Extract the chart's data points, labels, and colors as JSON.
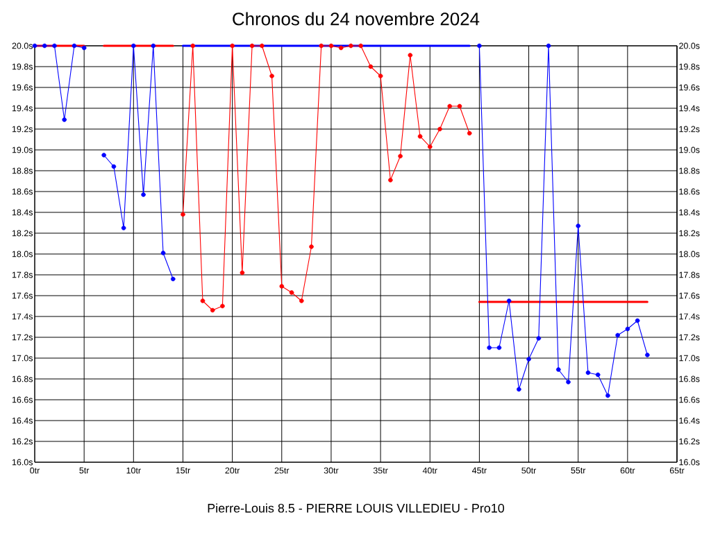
{
  "chart_data": {
    "type": "line",
    "title": "Chronos du 24 novembre 2024",
    "xlabel": "Pierre-Louis 8.5 - PIERRE LOUIS VILLEDIEU - Pro10",
    "x": [
      0,
      1,
      2,
      3,
      4,
      5,
      6,
      7,
      8,
      9,
      10,
      11,
      12,
      13,
      14,
      15,
      16,
      17,
      18,
      19,
      20,
      21,
      22,
      23,
      24,
      25,
      26,
      27,
      28,
      29,
      30,
      31,
      32,
      33,
      34,
      35,
      36,
      37,
      38,
      39,
      40,
      41,
      42,
      43,
      44,
      45,
      46,
      47,
      48,
      49,
      50,
      51,
      52,
      53,
      54,
      55,
      56,
      57,
      58,
      59,
      60,
      61,
      62
    ],
    "series": [
      {
        "type": "line",
        "marker": "none",
        "color": "#ff0000",
        "x": [
          0,
          5
        ],
        "values": [
          20,
          20
        ]
      },
      {
        "type": "line",
        "marker": "none",
        "color": "#ff0000",
        "x": [
          7,
          14
        ],
        "values": [
          20,
          20
        ]
      },
      {
        "type": "line",
        "marker": "none",
        "color": "#0000ff",
        "x": [
          15,
          44
        ],
        "values": [
          20,
          20
        ]
      },
      {
        "type": "line",
        "marker": "none",
        "color": "#ff0000",
        "x": [
          45,
          62
        ],
        "values": [
          17.54,
          17.54
        ]
      },
      {
        "color": "#0000ff",
        "values": [
          20.0,
          20.0,
          20.0,
          19.29,
          20.0,
          19.98,
          null,
          18.95,
          18.84,
          18.25,
          20.0,
          18.57,
          20.0,
          18.01,
          17.76,
          null,
          null,
          null,
          null,
          null,
          null,
          null,
          null,
          null,
          null,
          null,
          null,
          null,
          null,
          null,
          null,
          null,
          null,
          null,
          null,
          null,
          null,
          null,
          null,
          null,
          null,
          null,
          null,
          null,
          null,
          20.0,
          17.1,
          17.1,
          17.55,
          16.7,
          16.99,
          17.19,
          20.0,
          16.89,
          16.77,
          18.27,
          16.86,
          16.84,
          16.64,
          17.22,
          17.28,
          17.36,
          17.03
        ]
      },
      {
        "color": "#ff0000",
        "values": [
          null,
          null,
          null,
          null,
          null,
          null,
          null,
          null,
          null,
          null,
          null,
          null,
          null,
          null,
          null,
          18.38,
          20.0,
          17.55,
          17.46,
          17.5,
          20.0,
          17.82,
          20.0,
          20.0,
          19.71,
          17.69,
          17.63,
          17.55,
          18.07,
          20.0,
          20.0,
          19.98,
          20.0,
          20.0,
          19.8,
          19.71,
          18.71,
          18.94,
          19.91,
          19.13,
          19.03,
          19.2,
          19.42,
          19.42,
          19.16,
          null,
          null,
          null,
          null,
          null,
          null,
          null,
          null,
          null,
          null,
          null,
          null,
          null,
          null,
          null,
          null,
          null,
          null
        ]
      }
    ],
    "xlim": [
      0,
      65
    ],
    "xticks": [
      {
        "value": 0,
        "label": "0tr"
      },
      {
        "value": 5,
        "label": "5tr"
      },
      {
        "value": 10,
        "label": "10tr"
      },
      {
        "value": 15,
        "label": "15tr"
      },
      {
        "value": 20,
        "label": "20tr"
      },
      {
        "value": 25,
        "label": "25tr"
      },
      {
        "value": 30,
        "label": "30tr"
      },
      {
        "value": 35,
        "label": "35tr"
      },
      {
        "value": 40,
        "label": "40tr"
      },
      {
        "value": 45,
        "label": "45tr"
      },
      {
        "value": 50,
        "label": "50tr"
      },
      {
        "value": 55,
        "label": "55tr"
      },
      {
        "value": 60,
        "label": "60tr"
      },
      {
        "value": 65,
        "label": "65tr"
      }
    ],
    "ylim": [
      16,
      20
    ],
    "yticks": [
      {
        "value": 16,
        "label": "16.0s"
      },
      {
        "value": 16.2,
        "label": "16.2s"
      },
      {
        "value": 16.4,
        "label": "16.4s"
      },
      {
        "value": 16.6,
        "label": "16.6s"
      },
      {
        "value": 16.8,
        "label": "16.8s"
      },
      {
        "value": 17,
        "label": "17.0s"
      },
      {
        "value": 17.2,
        "label": "17.2s"
      },
      {
        "value": 17.4,
        "label": "17.4s"
      },
      {
        "value": 17.6,
        "label": "17.6s"
      },
      {
        "value": 17.8,
        "label": "17.8s"
      },
      {
        "value": 18,
        "label": "18.0s"
      },
      {
        "value": 18.2,
        "label": "18.2s"
      },
      {
        "value": 18.4,
        "label": "18.4s"
      },
      {
        "value": 18.6,
        "label": "18.6s"
      },
      {
        "value": 18.8,
        "label": "18.8s"
      },
      {
        "value": 19,
        "label": "19.0s"
      },
      {
        "value": 19.2,
        "label": "19.2s"
      },
      {
        "value": 19.4,
        "label": "19.4s"
      },
      {
        "value": 19.6,
        "label": "19.6s"
      },
      {
        "value": 19.8,
        "label": "19.8s"
      },
      {
        "value": 20,
        "label": "20.0s"
      }
    ],
    "y2lim": [
      16,
      20
    ],
    "y2ticks": [
      {
        "value": 16,
        "label": "16.0s"
      },
      {
        "value": 16.2,
        "label": "16.2s"
      },
      {
        "value": 16.4,
        "label": "16.4s"
      },
      {
        "value": 16.6,
        "label": "16.6s"
      },
      {
        "value": 16.8,
        "label": "16.8s"
      },
      {
        "value": 17,
        "label": "17.0s"
      },
      {
        "value": 17.2,
        "label": "17.2s"
      },
      {
        "value": 17.4,
        "label": "17.4s"
      },
      {
        "value": 17.6,
        "label": "17.6s"
      },
      {
        "value": 17.8,
        "label": "17.8s"
      },
      {
        "value": 18,
        "label": "18.0s"
      },
      {
        "value": 18.2,
        "label": "18.2s"
      },
      {
        "value": 18.4,
        "label": "18.4s"
      },
      {
        "value": 18.6,
        "label": "18.6s"
      },
      {
        "value": 18.8,
        "label": "18.8s"
      },
      {
        "value": 19,
        "label": "19.0s"
      },
      {
        "value": 19.2,
        "label": "19.2s"
      },
      {
        "value": 19.4,
        "label": "19.4s"
      },
      {
        "value": 19.6,
        "label": "19.6s"
      },
      {
        "value": 19.8,
        "label": "19.8s"
      },
      {
        "value": 20,
        "label": "20.0s"
      }
    ],
    "grid": true,
    "marker": "circle",
    "line_style": "solid"
  }
}
